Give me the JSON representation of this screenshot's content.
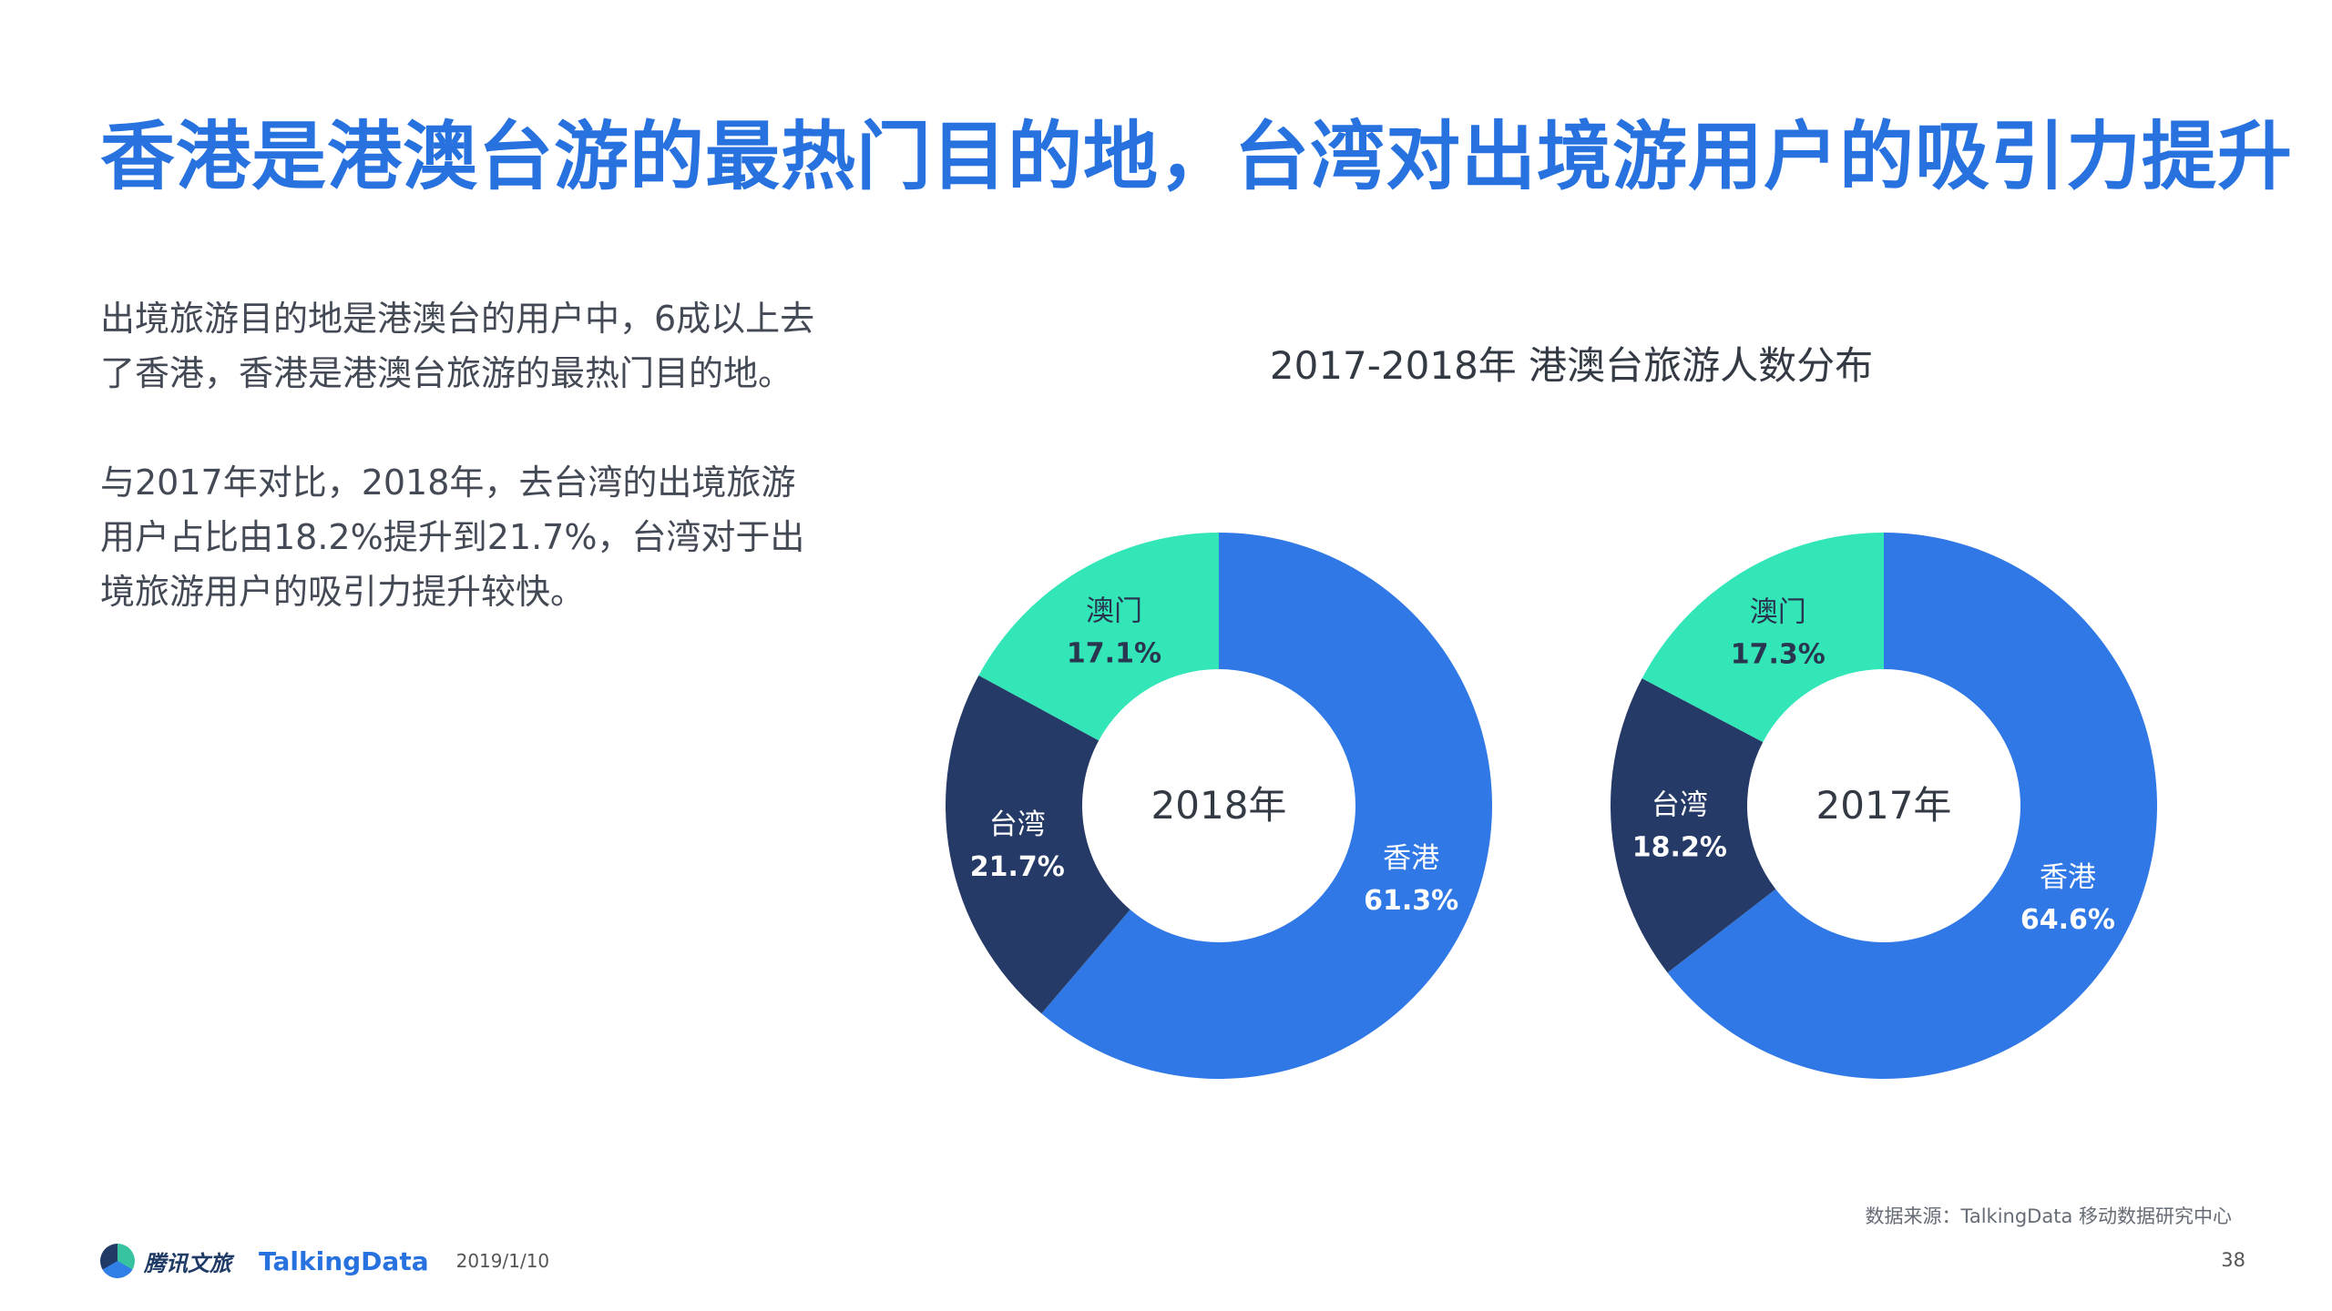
{
  "headline": "香港是港澳台游的最热门目的地，台湾对出境游用户的吸引力提升",
  "paragraphs": [
    "出境旅游目的地是港澳台的用户中，6成以上去了香港，香港是港澳台旅游的最热门目的地。",
    "与2017年对比，2018年，去台湾的出境旅游用户占比由18.2%提升到21.7%，台湾对于出境旅游用户的吸引力提升较快。"
  ],
  "footer": {
    "source": "数据来源：TalkingData 移动数据研究中心",
    "brand1": "腾讯文旅",
    "brand2": "TalkingData",
    "date": "2019/1/10",
    "page": "38"
  },
  "chart_data": {
    "type": "pie",
    "title": "2017-2018年 港澳台旅游人数分布",
    "colors": {
      "香港": "#2f78e6",
      "台湾": "#253a66",
      "澳门": "#33e6b8"
    },
    "charts": [
      {
        "center_label": "2018年",
        "slices": [
          {
            "label": "香港",
            "value": 61.3,
            "display": "61.3%"
          },
          {
            "label": "台湾",
            "value": 21.7,
            "display": "21.7%"
          },
          {
            "label": "澳门",
            "value": 17.1,
            "display": "17.1%"
          }
        ]
      },
      {
        "center_label": "2017年",
        "slices": [
          {
            "label": "香港",
            "value": 64.6,
            "display": "64.6%"
          },
          {
            "label": "台湾",
            "value": 18.2,
            "display": "18.2%"
          },
          {
            "label": "澳门",
            "value": 17.3,
            "display": "17.3%"
          }
        ]
      }
    ]
  }
}
